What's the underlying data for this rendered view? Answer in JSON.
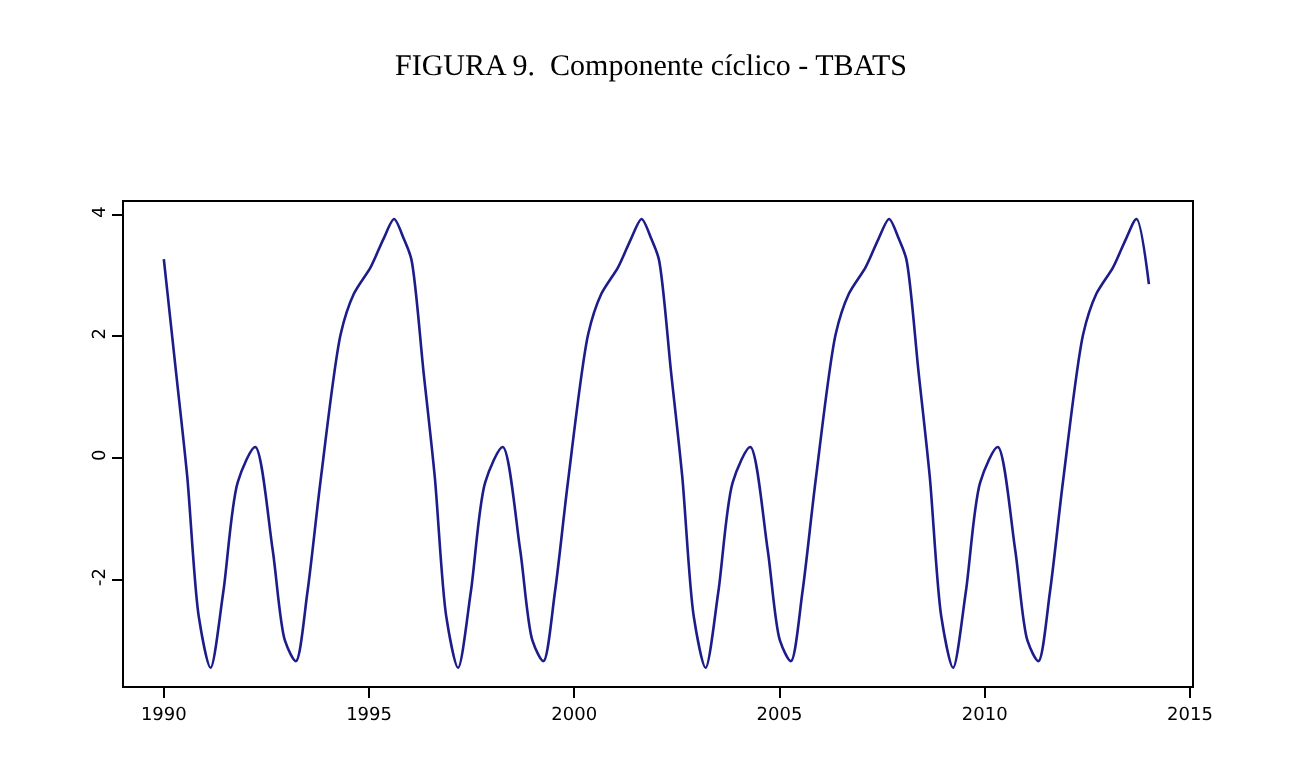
{
  "chart_data": {
    "type": "line",
    "title": "FIGURA 9.  Componente cíclico - TBATS",
    "x": [
      1990,
      1990.3,
      1990.57,
      1990.85,
      1991.14,
      1991.45,
      1991.8,
      1992.23,
      1992.65,
      1992.95,
      1993.22,
      1993.5,
      1993.82,
      1994.31,
      1994.63,
      1995.04,
      1995.35,
      1995.61,
      1995.85,
      1996.03,
      1996.33,
      1996.6,
      1996.88,
      1997.17,
      1997.48,
      1997.83,
      1998.26,
      1998.68,
      1998.98,
      1999.25,
      1999.53,
      1999.85,
      2000.34,
      2000.66,
      2001.07,
      2001.38,
      2001.64,
      2001.88,
      2002.06,
      2002.36,
      2002.63,
      2002.91,
      2003.2,
      2003.51,
      2003.86,
      2004.29,
      2004.71,
      2005.01,
      2005.28,
      2005.56,
      2005.88,
      2006.37,
      2006.69,
      2007.1,
      2007.41,
      2007.67,
      2007.91,
      2008.09,
      2008.39,
      2008.66,
      2008.94,
      2009.23,
      2009.54,
      2009.89,
      2010.32,
      2010.74,
      2011.04,
      2011.31,
      2011.59,
      2011.91,
      2012.4,
      2012.72,
      2013.13,
      2013.44,
      2013.7,
      2014.0
    ],
    "series": [
      {
        "color": "#1c1c8a",
        "values": [
          3.27,
          1.4,
          -0.3,
          -2.6,
          -3.45,
          -2.2,
          -0.4,
          0.18,
          -1.5,
          -3.0,
          -3.34,
          -2.2,
          -0.37,
          2.04,
          2.7,
          3.14,
          3.6,
          3.93,
          3.6,
          3.27,
          1.4,
          -0.3,
          -2.6,
          -3.45,
          -2.2,
          -0.4,
          0.18,
          -1.5,
          -3.0,
          -3.34,
          -2.2,
          -0.37,
          2.04,
          2.7,
          3.14,
          3.6,
          3.93,
          3.6,
          3.27,
          1.4,
          -0.3,
          -2.6,
          -3.45,
          -2.2,
          -0.4,
          0.18,
          -1.5,
          -3.0,
          -3.34,
          -2.2,
          -0.37,
          2.04,
          2.7,
          3.14,
          3.6,
          3.93,
          3.6,
          3.27,
          1.4,
          -0.3,
          -2.6,
          -3.45,
          -2.2,
          -0.4,
          0.18,
          -1.5,
          -3.0,
          -3.34,
          -2.2,
          -0.37,
          2.04,
          2.7,
          3.14,
          3.6,
          3.93,
          2.86
        ]
      }
    ],
    "xlim": [
      1989.03,
      2015.05
    ],
    "ylim": [
      -3.75,
      4.21
    ],
    "xticks": [
      1990,
      1995,
      2000,
      2005,
      2010,
      2015
    ],
    "yticks": [
      -2,
      0,
      2,
      4
    ],
    "legend": false,
    "marker": "none",
    "line_style": "solid"
  }
}
